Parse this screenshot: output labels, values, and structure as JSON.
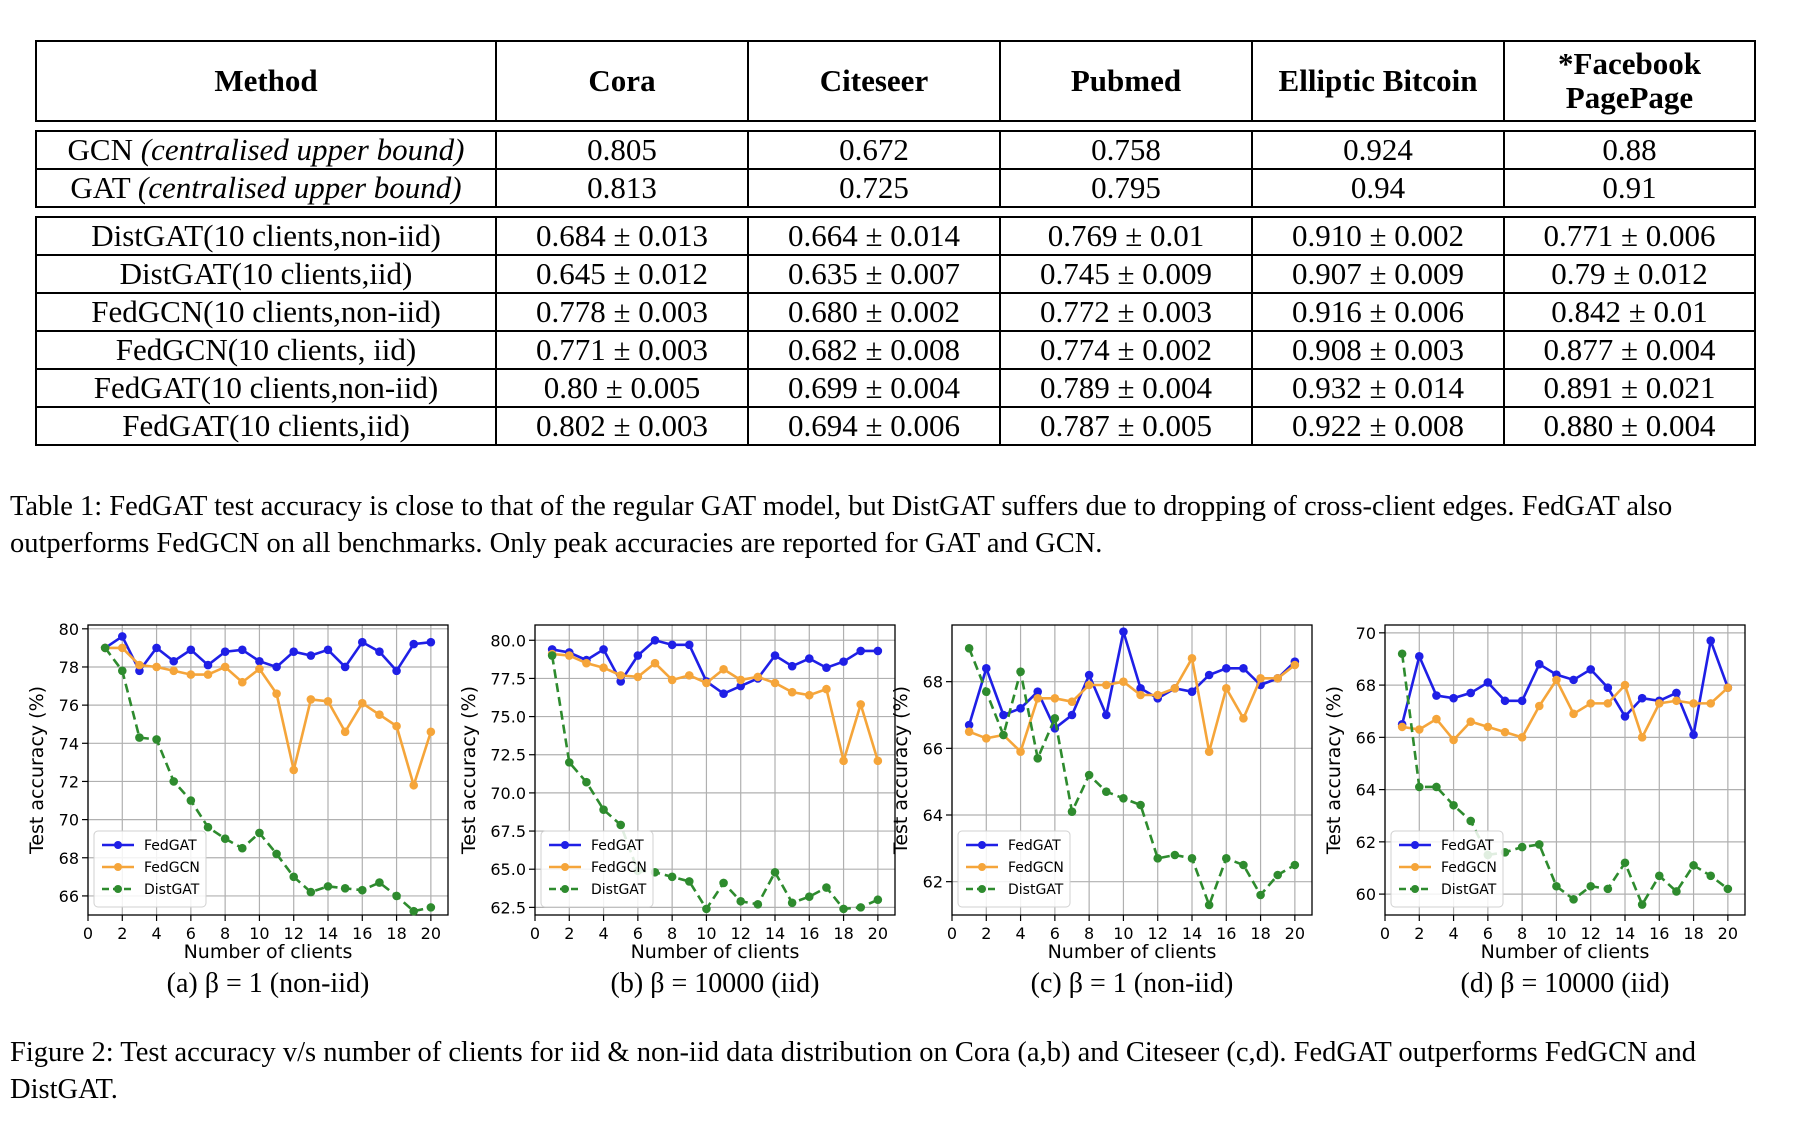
{
  "table": {
    "headers": [
      "Method",
      "Cora",
      "Citeseer",
      "Pubmed",
      "Elliptic Bitcoin",
      "*Facebook PagePage"
    ],
    "header_lines": [
      [
        "Method"
      ],
      [
        "Cora"
      ],
      [
        "Citeseer"
      ],
      [
        "Pubmed"
      ],
      [
        "Elliptic Bitcoin"
      ],
      [
        "*Facebook",
        "PagePage"
      ]
    ],
    "group1": [
      {
        "method_main": "GCN ",
        "method_italic": "(centralised upper bound)",
        "values": [
          "0.805",
          "0.672",
          "0.758",
          "0.924",
          "0.88"
        ]
      },
      {
        "method_main": "GAT ",
        "method_italic": "(centralised upper bound)",
        "values": [
          "0.813",
          "0.725",
          "0.795",
          "0.94",
          "0.91"
        ]
      }
    ],
    "group2": [
      {
        "method": "DistGAT(10 clients,non-iid)",
        "values": [
          "0.684 ± 0.013",
          "0.664 ± 0.014",
          "0.769 ± 0.01",
          "0.910 ± 0.002",
          "0.771 ± 0.006"
        ]
      },
      {
        "method": "DistGAT(10 clients,iid)",
        "values": [
          "0.645 ± 0.012",
          "0.635 ± 0.007",
          "0.745 ± 0.009",
          "0.907 ± 0.009",
          "0.79 ± 0.012"
        ]
      },
      {
        "method": "FedGCN(10 clients,non-iid)",
        "values": [
          "0.778 ± 0.003",
          "0.680 ± 0.002",
          "0.772 ± 0.003",
          "0.916 ± 0.006",
          "0.842 ± 0.01"
        ]
      },
      {
        "method": "FedGCN(10 clients, iid)",
        "values": [
          "0.771 ± 0.003",
          "0.682 ± 0.008",
          "0.774 ± 0.002",
          "0.908 ± 0.003",
          "0.877 ± 0.004"
        ]
      },
      {
        "method": "FedGAT(10 clients,non-iid)",
        "values": [
          "0.80 ± 0.005",
          "0.699 ± 0.004",
          "0.789 ± 0.004",
          "0.932 ± 0.014",
          "0.891 ± 0.021"
        ]
      },
      {
        "method": "FedGAT(10 clients,iid)",
        "values": [
          "0.802 ± 0.003",
          "0.694 ± 0.006",
          "0.787 ± 0.005",
          "0.922 ± 0.008",
          "0.880 ± 0.004"
        ]
      }
    ]
  },
  "table_caption": "Table 1: FedGAT test accuracy is close to that of the regular GAT model, but DistGAT suffers due to dropping of cross-client edges. FedGAT also outperforms FedGCN on all benchmarks. Only peak accuracies are reported for GAT and GCN.",
  "figure_caption": "Figure 2: Test accuracy v/s number of clients for iid & non-iid data distribution on Cora (a,b) and Citeseer (c,d). FedGAT outperforms FedGCN and DistGAT.",
  "colors": {
    "FedGAT": "#1f1fe6",
    "FedGCN": "#f5a53a",
    "DistGAT": "#2e8b2e"
  },
  "chart_data": [
    {
      "type": "line",
      "subcaption": "(a) β = 1 (non-iid)",
      "xlabel": "Number of clients",
      "ylabel": "Test accuracy (%)",
      "xlim": [
        0,
        21
      ],
      "ylim": [
        65,
        80.2
      ],
      "xticks": [
        0,
        2,
        4,
        6,
        8,
        10,
        12,
        14,
        16,
        18,
        20
      ],
      "yticks": [
        66,
        68,
        70,
        72,
        74,
        76,
        78,
        80
      ],
      "ytick_labels": [
        "66",
        "68",
        "70",
        "72",
        "74",
        "76",
        "78",
        "80"
      ],
      "grid": true,
      "legend": "lower-left",
      "x": [
        1,
        2,
        3,
        4,
        5,
        6,
        7,
        8,
        9,
        10,
        11,
        12,
        13,
        14,
        15,
        16,
        17,
        18,
        19,
        20
      ],
      "series": [
        {
          "name": "FedGAT",
          "style": "solid",
          "values": [
            79.0,
            79.6,
            77.8,
            79.0,
            78.3,
            78.9,
            78.1,
            78.8,
            78.9,
            78.3,
            78.0,
            78.8,
            78.6,
            78.9,
            78.0,
            79.3,
            78.8,
            77.8,
            79.2,
            79.3
          ]
        },
        {
          "name": "FedGCN",
          "style": "solid",
          "values": [
            79.0,
            79.0,
            78.1,
            78.0,
            77.8,
            77.6,
            77.6,
            78.0,
            77.2,
            77.9,
            76.6,
            72.6,
            76.3,
            76.2,
            74.6,
            76.1,
            75.5,
            74.9,
            71.8,
            74.6
          ]
        },
        {
          "name": "DistGAT",
          "style": "dashed",
          "values": [
            79.0,
            77.8,
            74.3,
            74.2,
            72.0,
            71.0,
            69.6,
            69.0,
            68.5,
            69.3,
            68.2,
            67.0,
            66.2,
            66.5,
            66.4,
            66.3,
            66.7,
            66.0,
            65.2,
            65.4
          ]
        }
      ]
    },
    {
      "type": "line",
      "subcaption": "(b) β = 10000 (iid)",
      "xlabel": "Number of clients",
      "ylabel": "Test accuracy (%)",
      "xlim": [
        0,
        21
      ],
      "ylim": [
        62,
        81
      ],
      "xticks": [
        0,
        2,
        4,
        6,
        8,
        10,
        12,
        14,
        16,
        18,
        20
      ],
      "yticks": [
        62.5,
        65.0,
        67.5,
        70.0,
        72.5,
        75.0,
        77.5,
        80.0
      ],
      "ytick_labels": [
        "62.5",
        "65.0",
        "67.5",
        "70.0",
        "72.5",
        "75.0",
        "77.5",
        "80.0"
      ],
      "grid": true,
      "legend": "lower-left",
      "x": [
        1,
        2,
        3,
        4,
        5,
        6,
        7,
        8,
        9,
        10,
        11,
        12,
        13,
        14,
        15,
        16,
        17,
        18,
        19,
        20
      ],
      "series": [
        {
          "name": "FedGAT",
          "style": "solid",
          "values": [
            79.4,
            79.2,
            78.7,
            79.4,
            77.3,
            79.0,
            80.0,
            79.7,
            79.7,
            77.3,
            76.5,
            77.0,
            77.5,
            79.0,
            78.3,
            78.8,
            78.2,
            78.6,
            79.3,
            79.3
          ]
        },
        {
          "name": "FedGCN",
          "style": "solid",
          "values": [
            79.1,
            79.0,
            78.5,
            78.2,
            77.7,
            77.6,
            78.5,
            77.4,
            77.7,
            77.2,
            78.1,
            77.4,
            77.6,
            77.2,
            76.6,
            76.4,
            76.8,
            72.1,
            75.8,
            72.1
          ]
        },
        {
          "name": "DistGAT",
          "style": "dashed",
          "values": [
            79.0,
            72.0,
            70.7,
            68.9,
            67.9,
            64.9,
            64.8,
            64.5,
            64.2,
            62.4,
            64.1,
            62.9,
            62.7,
            64.8,
            62.8,
            63.2,
            63.8,
            62.4,
            62.5,
            63.0
          ]
        }
      ]
    },
    {
      "type": "line",
      "subcaption": "(c) β = 1 (non-iid)",
      "xlabel": "Number of clients",
      "ylabel": "Test accuracy (%)",
      "xlim": [
        0,
        21
      ],
      "ylim": [
        61.0,
        69.7
      ],
      "xticks": [
        0,
        2,
        4,
        6,
        8,
        10,
        12,
        14,
        16,
        18,
        20
      ],
      "yticks": [
        62,
        64,
        66,
        68
      ],
      "ytick_labels": [
        "62",
        "64",
        "66",
        "68"
      ],
      "grid": true,
      "legend": "lower-left",
      "x": [
        1,
        2,
        3,
        4,
        5,
        6,
        7,
        8,
        9,
        10,
        11,
        12,
        13,
        14,
        15,
        16,
        17,
        18,
        19,
        20
      ],
      "series": [
        {
          "name": "FedGAT",
          "style": "solid",
          "values": [
            66.7,
            68.4,
            67.0,
            67.2,
            67.7,
            66.6,
            67.0,
            68.2,
            67.0,
            69.5,
            67.8,
            67.5,
            67.8,
            67.7,
            68.2,
            68.4,
            68.4,
            67.9,
            68.1,
            68.6
          ]
        },
        {
          "name": "FedGCN",
          "style": "solid",
          "values": [
            66.5,
            66.3,
            66.4,
            65.9,
            67.5,
            67.5,
            67.4,
            67.9,
            67.9,
            68.0,
            67.6,
            67.6,
            67.8,
            68.7,
            65.9,
            67.8,
            66.9,
            68.1,
            68.1,
            68.5
          ]
        },
        {
          "name": "DistGAT",
          "style": "dashed",
          "values": [
            69.0,
            67.7,
            66.4,
            68.3,
            65.7,
            66.9,
            64.1,
            65.2,
            64.7,
            64.5,
            64.3,
            62.7,
            62.8,
            62.7,
            61.3,
            62.7,
            62.5,
            61.6,
            62.2,
            62.5
          ]
        }
      ]
    },
    {
      "type": "line",
      "subcaption": "(d) β = 10000 (iid)",
      "xlabel": "Number of clients",
      "ylabel": "Test accuracy (%)",
      "xlim": [
        0,
        21
      ],
      "ylim": [
        59.2,
        70.3
      ],
      "xticks": [
        0,
        2,
        4,
        6,
        8,
        10,
        12,
        14,
        16,
        18,
        20
      ],
      "yticks": [
        60,
        62,
        64,
        66,
        68,
        70
      ],
      "ytick_labels": [
        "60",
        "62",
        "64",
        "66",
        "68",
        "70"
      ],
      "grid": true,
      "legend": "lower-left",
      "x": [
        1,
        2,
        3,
        4,
        5,
        6,
        7,
        8,
        9,
        10,
        11,
        12,
        13,
        14,
        15,
        16,
        17,
        18,
        19,
        20
      ],
      "series": [
        {
          "name": "FedGAT",
          "style": "solid",
          "values": [
            66.5,
            69.1,
            67.6,
            67.5,
            67.7,
            68.1,
            67.4,
            67.4,
            68.8,
            68.4,
            68.2,
            68.6,
            67.9,
            66.8,
            67.5,
            67.4,
            67.7,
            66.1,
            69.7,
            67.9
          ]
        },
        {
          "name": "FedGCN",
          "style": "solid",
          "values": [
            66.4,
            66.3,
            66.7,
            65.9,
            66.6,
            66.4,
            66.2,
            66.0,
            67.2,
            68.2,
            66.9,
            67.3,
            67.3,
            68.0,
            66.0,
            67.3,
            67.4,
            67.3,
            67.3,
            67.9
          ]
        },
        {
          "name": "DistGAT",
          "style": "dashed",
          "values": [
            69.2,
            64.1,
            64.1,
            63.4,
            62.8,
            61.5,
            61.6,
            61.8,
            61.9,
            60.3,
            59.8,
            60.3,
            60.2,
            61.2,
            59.6,
            60.7,
            60.1,
            61.1,
            60.7,
            60.2
          ]
        }
      ]
    }
  ]
}
